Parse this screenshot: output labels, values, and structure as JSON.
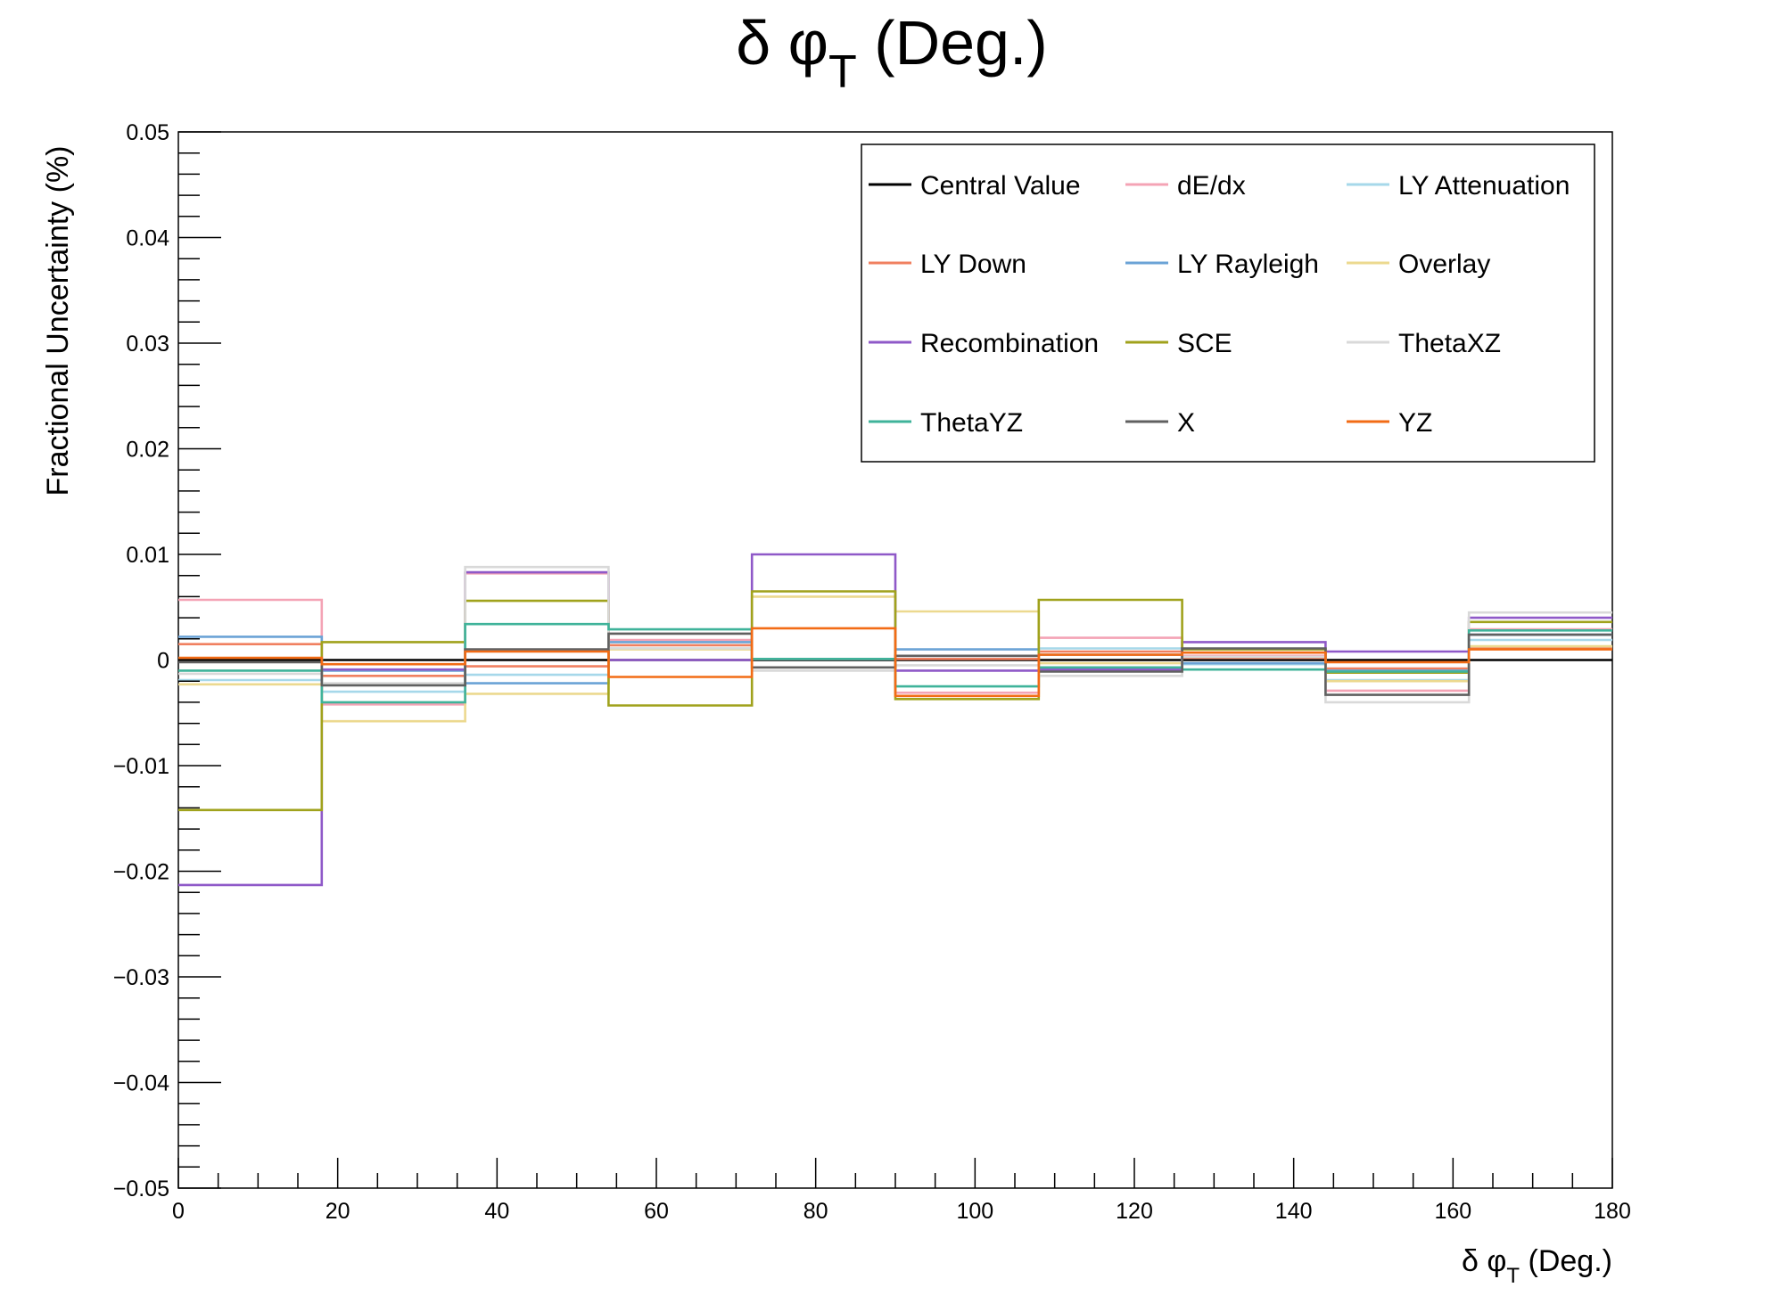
{
  "chart_data": {
    "type": "line",
    "style": "step",
    "title": {
      "main": "δ φ",
      "sub": "T",
      "suffix": " (Deg.)"
    },
    "xlabel": {
      "main": "δ φ",
      "sub": "T",
      "suffix": " (Deg.)"
    },
    "ylabel": "Fractional Uncertainty (%)",
    "xlim": [
      0,
      180
    ],
    "ylim": [
      -0.05,
      0.05
    ],
    "x_ticks": [
      "0",
      "20",
      "40",
      "60",
      "80",
      "100",
      "120",
      "140",
      "160",
      "180"
    ],
    "y_ticks": [
      "−0.05",
      "−0.04",
      "−0.03",
      "−0.02",
      "−0.01",
      "0",
      "0.01",
      "0.02",
      "0.03",
      "0.04",
      "0.05"
    ],
    "bin_edges": [
      0,
      18,
      36,
      54,
      72,
      90,
      108,
      126,
      144,
      162,
      180
    ],
    "legend_position": "top-right",
    "series": [
      {
        "name": "Central Value",
        "color": "#000000",
        "values": [
          0,
          0,
          0,
          0,
          0,
          0,
          0,
          0,
          0,
          0
        ]
      },
      {
        "name": "dE/dx",
        "color": "#f4a3b5",
        "values": [
          0.0057,
          -0.0042,
          0.0082,
          0.0019,
          0.0001,
          -0.0031,
          0.0021,
          0.0004,
          -0.0029,
          0.0029
        ]
      },
      {
        "name": "LY Attenuation",
        "color": "#a6d8ea",
        "values": [
          -0.0019,
          -0.003,
          -0.0014,
          0.0011,
          0.0001,
          0.0004,
          0.0011,
          -0.0004,
          -0.0019,
          0.0019
        ]
      },
      {
        "name": "LY Down",
        "color": "#f08060",
        "values": [
          0.0015,
          -0.0015,
          -0.0006,
          0.0014,
          0.0001,
          0.0001,
          0.0008,
          0.0002,
          -0.0008,
          0.0011
        ]
      },
      {
        "name": "LY Rayleigh",
        "color": "#6ba3d6",
        "values": [
          0.0022,
          -0.001,
          -0.0022,
          0.0017,
          0.0001,
          0.001,
          0.0005,
          -0.0003,
          -0.001,
          0.0024
        ]
      },
      {
        "name": "Overlay",
        "color": "#ecd98f",
        "values": [
          -0.0023,
          -0.0058,
          -0.0032,
          0.001,
          0.006,
          0.0046,
          -0.0003,
          0.0007,
          -0.002,
          0.0013
        ]
      },
      {
        "name": "Recombination",
        "color": "#8f59c8",
        "values": [
          -0.0213,
          -0.0009,
          0.0083,
          0.0,
          0.01,
          -0.001,
          -0.0009,
          0.0017,
          0.0008,
          0.004
        ]
      },
      {
        "name": "SCE",
        "color": "#a0a21c",
        "values": [
          -0.0142,
          0.0017,
          0.0056,
          -0.0043,
          0.0065,
          -0.0037,
          0.0057,
          0.001,
          -0.0012,
          0.0036
        ]
      },
      {
        "name": "ThetaXZ",
        "color": "#d9d9d9",
        "values": [
          -0.0013,
          -0.0022,
          0.0088,
          0.0011,
          -0.001,
          -0.0005,
          -0.0015,
          0.0003,
          -0.004,
          0.0045
        ]
      },
      {
        "name": "ThetaYZ",
        "color": "#3fb39a",
        "values": [
          -0.001,
          -0.004,
          0.0034,
          0.0029,
          0.0001,
          -0.0025,
          -0.0007,
          -0.0009,
          -0.0011,
          0.0028
        ]
      },
      {
        "name": "X",
        "color": "#606060",
        "values": [
          -0.0002,
          -0.0024,
          0.001,
          0.0025,
          -0.0007,
          0.0004,
          -0.0011,
          0.0011,
          -0.0033,
          0.0024
        ]
      },
      {
        "name": "YZ",
        "color": "#f26b15",
        "values": [
          0.0002,
          -0.0004,
          0.0008,
          -0.0016,
          0.003,
          -0.0034,
          0.0005,
          0.0007,
          -0.0002,
          0.001
        ]
      }
    ]
  }
}
